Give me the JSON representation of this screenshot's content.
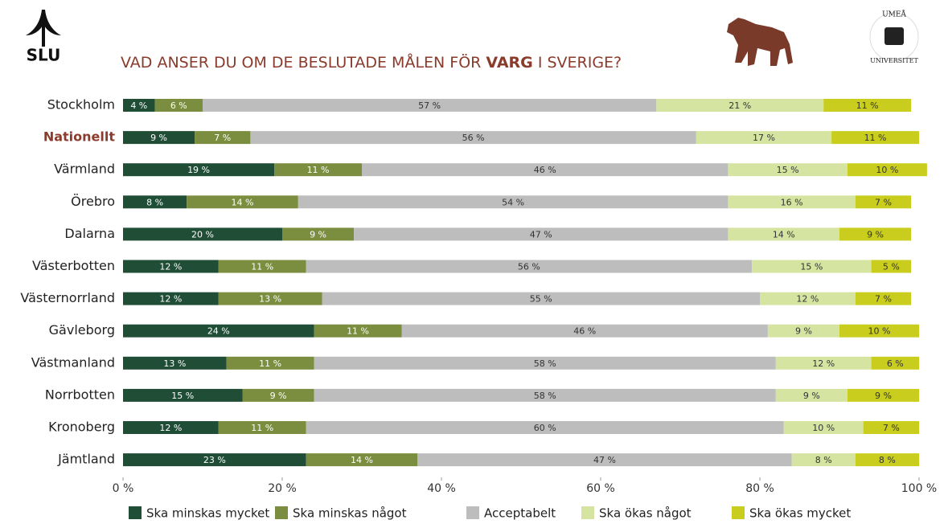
{
  "logos": {
    "left": "SLU",
    "right_top": "UMEÅ",
    "right_bottom": "UNIVERSITET"
  },
  "chart_data": {
    "type": "stacked_bar_horizontal",
    "title": [
      "VAD ANSER DU OM DE BESLUTADE MÅLEN FÖR ",
      "VARG",
      " I SVERIGE?"
    ],
    "categories": [
      "Stockholm",
      "Nationellt",
      "Värmland",
      "Örebro",
      "Dalarna",
      "Västerbotten",
      "Västernorrland",
      "Gävleborg",
      "Västmanland",
      "Norrbotten",
      "Kronoberg",
      "Jämtland"
    ],
    "highlight_index": 1,
    "series": [
      {
        "name": "Ska minskas mycket",
        "color": "#1f4d35",
        "label_color": "#ffffff",
        "values": [
          4,
          9,
          19,
          8,
          20,
          12,
          12,
          24,
          13,
          15,
          12,
          23
        ],
        "value_labels": [
          "4 %",
          "9 %",
          "19 %",
          "8 %",
          "20 %",
          "12 %",
          "12 %",
          "24 %",
          "13 %",
          "15 %",
          "12 %",
          "23 %"
        ]
      },
      {
        "name": "Ska minskas något",
        "color": "#7b8d3e",
        "label_color": "#ffffff",
        "values": [
          6,
          7,
          11,
          14,
          9,
          11,
          13,
          11,
          11,
          9,
          11,
          14
        ],
        "value_labels": [
          "6 %",
          "7 %",
          "11 %",
          "14 %",
          "9 %",
          "11 %",
          "13 %",
          "11 %",
          "11 %",
          "9 %",
          "11 %",
          "14 %"
        ]
      },
      {
        "name": "Acceptabelt",
        "color": "#bdbdbd",
        "label_color": "#333333",
        "values": [
          57,
          56,
          46,
          54,
          47,
          56,
          55,
          46,
          58,
          58,
          60,
          47
        ],
        "value_labels": [
          "57 %",
          "56 %",
          "46 %",
          "54 %",
          "47 %",
          "56 %",
          "55 %",
          "46 %",
          "58 %",
          "58 %",
          "60 %",
          "47 %"
        ]
      },
      {
        "name": "Ska ökas något",
        "color": "#d6e4a2",
        "label_color": "#333333",
        "values": [
          21,
          17,
          15,
          16,
          14,
          15,
          12,
          9,
          12,
          9,
          10,
          8
        ],
        "value_labels": [
          "21 %",
          "17 %",
          "15 %",
          "16 %",
          "14 %",
          "15 %",
          "12 %",
          "9 %",
          "12 %",
          "9 %",
          "10 %",
          "8 %"
        ]
      },
      {
        "name": "Ska ökas mycket",
        "color": "#c9cd1e",
        "label_color": "#333333",
        "values": [
          11,
          11,
          10,
          7,
          9,
          5,
          7,
          10,
          6,
          9,
          7,
          8
        ],
        "value_labels": [
          "11 %",
          "11 %",
          "10 %",
          "7 %",
          "9 %",
          "5 %",
          "7 %",
          "10 %",
          "6 %",
          "9 %",
          "7 %",
          "8 %"
        ]
      }
    ],
    "xlim": [
      0,
      100
    ],
    "xticks": [
      {
        "value": 0,
        "label": "0 %"
      },
      {
        "value": 20,
        "label": "20 %"
      },
      {
        "value": 40,
        "label": "40 %"
      },
      {
        "value": 60,
        "label": "60 %"
      },
      {
        "value": 80,
        "label": "80 %"
      },
      {
        "value": 100,
        "label": "100 %"
      }
    ]
  }
}
